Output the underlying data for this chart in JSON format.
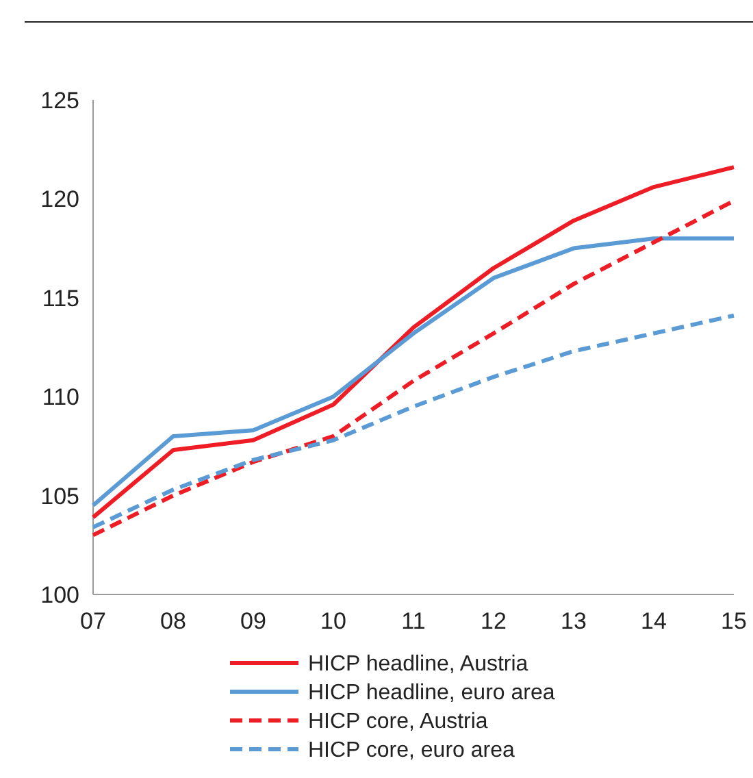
{
  "chart_data": {
    "type": "line",
    "categories": [
      "07",
      "08",
      "09",
      "10",
      "11",
      "12",
      "13",
      "14",
      "15"
    ],
    "series": [
      {
        "name": "HICP headline, Austria",
        "color": "#ee1c25",
        "line_style": "solid",
        "values": [
          103.9,
          107.3,
          107.8,
          109.6,
          113.5,
          116.5,
          118.9,
          120.6,
          121.6
        ]
      },
      {
        "name": "HICP headline, euro area",
        "color": "#5b9bd5",
        "line_style": "solid",
        "values": [
          104.5,
          108.0,
          108.3,
          110.0,
          113.2,
          116.0,
          117.5,
          118.0,
          118.0
        ]
      },
      {
        "name": "HICP core, Austria",
        "color": "#ee1c25",
        "line_style": "dashed",
        "values": [
          103.0,
          105.0,
          106.7,
          108.0,
          110.8,
          113.2,
          115.7,
          117.8,
          119.9
        ]
      },
      {
        "name": "HICP core, euro area",
        "color": "#5b9bd5",
        "line_style": "dashed",
        "values": [
          103.4,
          105.3,
          106.8,
          107.8,
          109.5,
          111.0,
          112.3,
          113.2,
          114.1
        ]
      }
    ],
    "ylim": [
      100,
      125
    ],
    "yticks": [
      100,
      105,
      110,
      115,
      120,
      125
    ],
    "grid": false,
    "legend": "bottom",
    "marker": "none"
  }
}
